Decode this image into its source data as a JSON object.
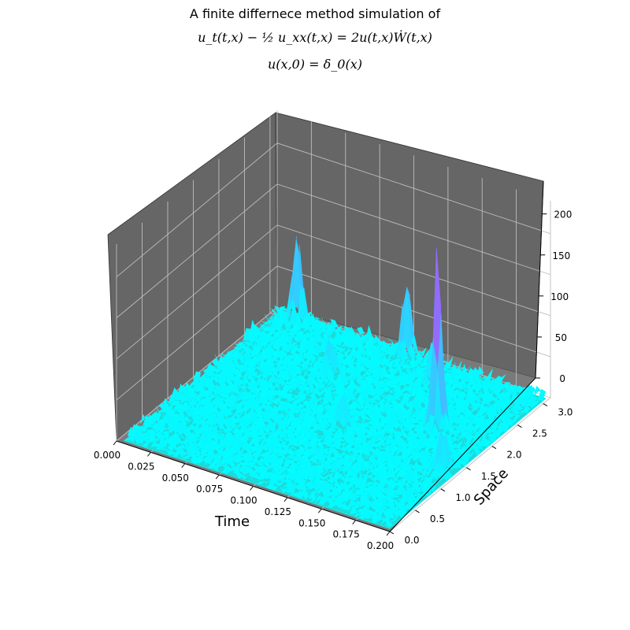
{
  "chart_data": {
    "type": "surface3d",
    "title_line1": "A finite differnece method simulation of",
    "title_line2": "u_t(t,x) − ½ u_xx(t,x) = 2u(t,x)Ẇ(t,x)",
    "title_line3": "u(x,0) = δ_0(x)",
    "xlabel": "Time",
    "ylabel": "Space",
    "zlabel": "",
    "xlim": [
      0.0,
      0.2
    ],
    "ylim": [
      0.0,
      3.14
    ],
    "zlim": [
      0,
      240
    ],
    "x_ticks": [
      "0.000",
      "0.025",
      "0.050",
      "0.075",
      "0.100",
      "0.125",
      "0.150",
      "0.175",
      "0.200"
    ],
    "y_ticks": [
      "0.0",
      "0.5",
      "1.0",
      "1.5",
      "2.0",
      "2.5",
      "3.0"
    ],
    "z_ticks": [
      "0",
      "50",
      "100",
      "150",
      "200"
    ],
    "colormap": "cool",
    "pane_color": "#666666",
    "grid": true,
    "peaks": [
      {
        "t": 0.02,
        "x": 3.0,
        "u": 110
      },
      {
        "t": 0.1,
        "x": 3.0,
        "u": 95
      },
      {
        "t": 0.13,
        "x": 2.7,
        "u": 55
      },
      {
        "t": 0.16,
        "x": 2.0,
        "u": 225
      },
      {
        "t": 0.19,
        "x": 1.3,
        "u": 60
      },
      {
        "t": 0.07,
        "x": 2.3,
        "u": 40
      },
      {
        "t": 0.11,
        "x": 1.5,
        "u": 35
      }
    ]
  }
}
